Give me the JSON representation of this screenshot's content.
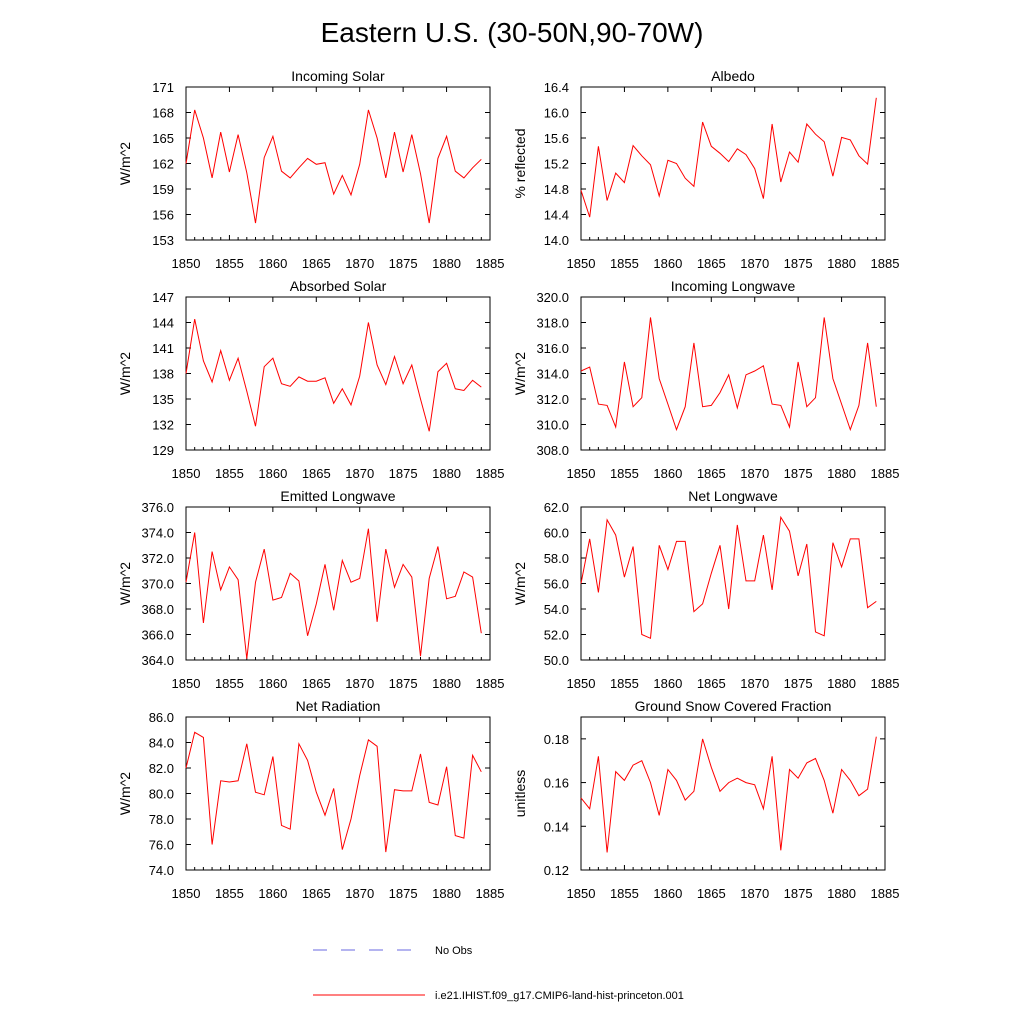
{
  "title": "Eastern U.S. (30-50N,90-70W)",
  "legend": {
    "obs_label": "No Obs",
    "obs_color": "#6a6ae0",
    "model_label": "i.e21.IHIST.f09_g17.CMIP6-land-hist-princeton.001",
    "model_color": "#ff0000"
  },
  "chart_data": [
    {
      "type": "line",
      "title": "Incoming Solar",
      "ylabel": "W/m^2",
      "xlim": [
        1850,
        1885
      ],
      "xticks": [
        1850,
        1855,
        1860,
        1865,
        1870,
        1875,
        1880,
        1885
      ],
      "ylim": [
        153,
        171
      ],
      "yticks": [
        "153",
        "156",
        "159",
        "162",
        "165",
        "168",
        "171"
      ],
      "series": [
        {
          "color": "#ff0000",
          "x": [
            1850,
            1851,
            1852,
            1853,
            1854,
            1855,
            1856,
            1857,
            1858,
            1859,
            1860,
            1861,
            1862,
            1863,
            1864,
            1865,
            1866,
            1867,
            1868,
            1869,
            1870,
            1871,
            1872,
            1873,
            1874,
            1875,
            1876,
            1877,
            1878,
            1879,
            1880,
            1881,
            1882,
            1883,
            1884
          ],
          "values": [
            162.0,
            168.3,
            165.0,
            160.3,
            165.7,
            161.0,
            165.4,
            160.9,
            155.0,
            162.7,
            165.2,
            161.1,
            160.3,
            161.5,
            162.6,
            161.9,
            162.1,
            158.4,
            160.6,
            158.3,
            161.9,
            168.3,
            165.0,
            160.3,
            165.7,
            161.0,
            165.4,
            160.8,
            155.0,
            162.6,
            165.2,
            161.1,
            160.3,
            161.5,
            162.5
          ]
        }
      ]
    },
    {
      "type": "line",
      "title": "Albedo",
      "ylabel": "% reflected",
      "xlim": [
        1850,
        1885
      ],
      "xticks": [
        1850,
        1855,
        1860,
        1865,
        1870,
        1875,
        1880,
        1885
      ],
      "ylim": [
        14.0,
        16.4
      ],
      "yticks": [
        "14.0",
        "14.4",
        "14.8",
        "15.2",
        "15.6",
        "16.0",
        "16.4"
      ],
      "series": [
        {
          "color": "#ff0000",
          "x": [
            1850,
            1851,
            1852,
            1853,
            1854,
            1855,
            1856,
            1857,
            1858,
            1859,
            1860,
            1861,
            1862,
            1863,
            1864,
            1865,
            1866,
            1867,
            1868,
            1869,
            1870,
            1871,
            1872,
            1873,
            1874,
            1875,
            1876,
            1877,
            1878,
            1879,
            1880,
            1881,
            1882,
            1883,
            1884
          ],
          "values": [
            14.78,
            14.36,
            15.47,
            14.62,
            15.05,
            14.9,
            15.48,
            15.32,
            15.18,
            14.69,
            15.25,
            15.2,
            14.97,
            14.84,
            15.85,
            15.47,
            15.36,
            15.23,
            15.43,
            15.34,
            15.12,
            14.65,
            15.82,
            14.91,
            15.38,
            15.22,
            15.82,
            15.66,
            15.54,
            15.0,
            15.61,
            15.57,
            15.32,
            15.19,
            16.23
          ]
        }
      ]
    },
    {
      "type": "line",
      "title": "Absorbed Solar",
      "ylabel": "W/m^2",
      "xlim": [
        1850,
        1885
      ],
      "xticks": [
        1850,
        1855,
        1860,
        1865,
        1870,
        1875,
        1880,
        1885
      ],
      "ylim": [
        129,
        147
      ],
      "yticks": [
        "129",
        "132",
        "135",
        "138",
        "141",
        "144",
        "147"
      ],
      "series": [
        {
          "color": "#ff0000",
          "x": [
            1850,
            1851,
            1852,
            1853,
            1854,
            1855,
            1856,
            1857,
            1858,
            1859,
            1860,
            1861,
            1862,
            1863,
            1864,
            1865,
            1866,
            1867,
            1868,
            1869,
            1870,
            1871,
            1872,
            1873,
            1874,
            1875,
            1876,
            1877,
            1878,
            1879,
            1880,
            1881,
            1882,
            1883,
            1884
          ],
          "values": [
            138.0,
            144.4,
            139.5,
            137.0,
            140.7,
            137.2,
            139.8,
            135.9,
            131.8,
            138.8,
            139.8,
            136.8,
            136.5,
            137.6,
            137.1,
            137.1,
            137.5,
            134.5,
            136.2,
            134.3,
            137.7,
            144.0,
            139.0,
            136.7,
            140.0,
            136.8,
            139.0,
            135.0,
            131.2,
            138.2,
            139.2,
            136.2,
            136.0,
            137.2,
            136.4
          ]
        }
      ]
    },
    {
      "type": "line",
      "title": "Incoming Longwave",
      "ylabel": "W/m^2",
      "xlim": [
        1850,
        1885
      ],
      "xticks": [
        1850,
        1855,
        1860,
        1865,
        1870,
        1875,
        1880,
        1885
      ],
      "ylim": [
        308.0,
        320.0
      ],
      "yticks": [
        "308.0",
        "310.0",
        "312.0",
        "314.0",
        "316.0",
        "318.0",
        "320.0"
      ],
      "series": [
        {
          "color": "#ff0000",
          "x": [
            1850,
            1851,
            1852,
            1853,
            1854,
            1855,
            1856,
            1857,
            1858,
            1859,
            1860,
            1861,
            1862,
            1863,
            1864,
            1865,
            1866,
            1867,
            1868,
            1869,
            1870,
            1871,
            1872,
            1873,
            1874,
            1875,
            1876,
            1877,
            1878,
            1879,
            1880,
            1881,
            1882,
            1883,
            1884
          ],
          "values": [
            314.2,
            314.5,
            311.6,
            311.5,
            309.8,
            314.9,
            311.4,
            312.1,
            318.4,
            313.6,
            311.6,
            309.6,
            311.4,
            316.4,
            311.4,
            311.5,
            312.5,
            313.9,
            311.3,
            313.9,
            314.2,
            314.6,
            311.6,
            311.5,
            309.8,
            314.9,
            311.4,
            312.1,
            318.4,
            313.6,
            311.6,
            309.6,
            311.5,
            316.4,
            311.4
          ]
        }
      ]
    },
    {
      "type": "line",
      "title": "Emitted Longwave",
      "ylabel": "W/m^2",
      "xlim": [
        1850,
        1885
      ],
      "xticks": [
        1850,
        1855,
        1860,
        1865,
        1870,
        1875,
        1880,
        1885
      ],
      "ylim": [
        364.0,
        376.0
      ],
      "yticks": [
        "364.0",
        "366.0",
        "368.0",
        "370.0",
        "372.0",
        "374.0",
        "376.0"
      ],
      "series": [
        {
          "color": "#ff0000",
          "x": [
            1850,
            1851,
            1852,
            1853,
            1854,
            1855,
            1856,
            1857,
            1858,
            1859,
            1860,
            1861,
            1862,
            1863,
            1864,
            1865,
            1866,
            1867,
            1868,
            1869,
            1870,
            1871,
            1872,
            1873,
            1874,
            1875,
            1876,
            1877,
            1878,
            1879,
            1880,
            1881,
            1882,
            1883,
            1884
          ],
          "values": [
            370.1,
            374.0,
            366.9,
            372.5,
            369.5,
            371.3,
            370.3,
            364.1,
            370.1,
            372.7,
            368.7,
            368.9,
            370.8,
            370.2,
            365.9,
            368.4,
            371.5,
            367.9,
            371.8,
            370.1,
            370.4,
            374.3,
            367.0,
            372.7,
            369.7,
            371.5,
            370.5,
            364.3,
            370.4,
            372.9,
            368.8,
            369.0,
            370.9,
            370.5,
            366.1
          ]
        }
      ]
    },
    {
      "type": "line",
      "title": "Net Longwave",
      "ylabel": "W/m^2",
      "xlim": [
        1850,
        1885
      ],
      "xticks": [
        1850,
        1855,
        1860,
        1865,
        1870,
        1875,
        1880,
        1885
      ],
      "ylim": [
        50.0,
        62.0
      ],
      "yticks": [
        "50.0",
        "52.0",
        "54.0",
        "56.0",
        "58.0",
        "60.0",
        "62.0"
      ],
      "series": [
        {
          "color": "#ff0000",
          "x": [
            1850,
            1851,
            1852,
            1853,
            1854,
            1855,
            1856,
            1857,
            1858,
            1859,
            1860,
            1861,
            1862,
            1863,
            1864,
            1865,
            1866,
            1867,
            1868,
            1869,
            1870,
            1871,
            1872,
            1873,
            1874,
            1875,
            1876,
            1877,
            1878,
            1879,
            1880,
            1881,
            1882,
            1883,
            1884
          ],
          "values": [
            56.0,
            59.5,
            55.3,
            61.0,
            59.8,
            56.5,
            58.9,
            52.0,
            51.7,
            59.0,
            57.1,
            59.3,
            59.3,
            53.8,
            54.4,
            56.8,
            59.0,
            54.0,
            60.6,
            56.2,
            56.2,
            59.8,
            55.5,
            61.2,
            60.1,
            56.6,
            59.1,
            52.2,
            51.9,
            59.2,
            57.3,
            59.5,
            59.5,
            54.1,
            54.6
          ]
        }
      ]
    },
    {
      "type": "line",
      "title": "Net Radiation",
      "ylabel": "W/m^2",
      "xlim": [
        1850,
        1885
      ],
      "xticks": [
        1850,
        1855,
        1860,
        1865,
        1870,
        1875,
        1880,
        1885
      ],
      "ylim": [
        74.0,
        86.0
      ],
      "yticks": [
        "74.0",
        "76.0",
        "78.0",
        "80.0",
        "82.0",
        "84.0",
        "86.0"
      ],
      "series": [
        {
          "color": "#ff0000",
          "x": [
            1850,
            1851,
            1852,
            1853,
            1854,
            1855,
            1856,
            1857,
            1858,
            1859,
            1860,
            1861,
            1862,
            1863,
            1864,
            1865,
            1866,
            1867,
            1868,
            1869,
            1870,
            1871,
            1872,
            1873,
            1874,
            1875,
            1876,
            1877,
            1878,
            1879,
            1880,
            1881,
            1882,
            1883,
            1884
          ],
          "values": [
            82.0,
            84.8,
            84.4,
            76.0,
            81.0,
            80.9,
            81.0,
            83.9,
            80.1,
            79.9,
            82.9,
            77.5,
            77.2,
            83.9,
            82.6,
            80.1,
            78.3,
            80.4,
            75.6,
            78.0,
            81.4,
            84.2,
            83.7,
            75.4,
            80.3,
            80.2,
            80.2,
            83.1,
            79.3,
            79.1,
            82.1,
            76.7,
            76.5,
            83.0,
            81.7
          ]
        }
      ]
    },
    {
      "type": "line",
      "title": "Ground Snow Covered Fraction",
      "ylabel": "unitless",
      "xlim": [
        1850,
        1885
      ],
      "xticks": [
        1850,
        1855,
        1860,
        1865,
        1870,
        1875,
        1880,
        1885
      ],
      "ylim": [
        0.12,
        0.19
      ],
      "yticks": [
        "0.12",
        "0.14",
        "0.16",
        "0.18"
      ],
      "series": [
        {
          "color": "#ff0000",
          "x": [
            1850,
            1851,
            1852,
            1853,
            1854,
            1855,
            1856,
            1857,
            1858,
            1859,
            1860,
            1861,
            1862,
            1863,
            1864,
            1865,
            1866,
            1867,
            1868,
            1869,
            1870,
            1871,
            1872,
            1873,
            1874,
            1875,
            1876,
            1877,
            1878,
            1879,
            1880,
            1881,
            1882,
            1883,
            1884
          ],
          "values": [
            0.153,
            0.148,
            0.172,
            0.128,
            0.165,
            0.161,
            0.168,
            0.17,
            0.16,
            0.145,
            0.166,
            0.161,
            0.152,
            0.156,
            0.18,
            0.167,
            0.156,
            0.16,
            0.162,
            0.16,
            0.159,
            0.148,
            0.172,
            0.129,
            0.166,
            0.162,
            0.169,
            0.171,
            0.161,
            0.146,
            0.166,
            0.161,
            0.154,
            0.157,
            0.181
          ]
        }
      ]
    }
  ]
}
